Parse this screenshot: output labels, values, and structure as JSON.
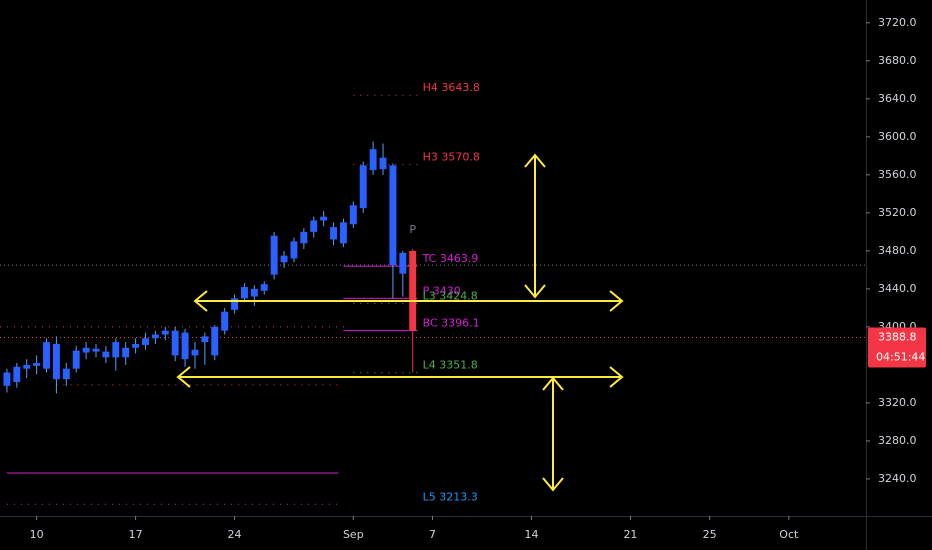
{
  "chart_data": {
    "type": "candlestick",
    "up_color": "#2962ff",
    "down_color": "#2962ff",
    "last_color": "#f23645",
    "wick_color": "#5b9cf6",
    "xlim": [
      -0.7,
      86.8
    ],
    "xticks": [
      {
        "value": 3,
        "label": "10"
      },
      {
        "value": 13,
        "label": "17"
      },
      {
        "value": 23,
        "label": "24"
      },
      {
        "value": 35,
        "label": "Sep"
      },
      {
        "value": 43,
        "label": "7"
      },
      {
        "value": 53,
        "label": "14"
      },
      {
        "value": 63,
        "label": "21"
      },
      {
        "value": 71,
        "label": "25"
      },
      {
        "value": 79,
        "label": "Oct"
      }
    ],
    "ylim": [
      3201,
      3744
    ],
    "yticks": [
      {
        "value": 3240,
        "label": "3240.0"
      },
      {
        "value": 3280,
        "label": "3280.0"
      },
      {
        "value": 3320,
        "label": "3320.0"
      },
      {
        "value": 3400,
        "label": "3400.0"
      },
      {
        "value": 3440,
        "label": "3440.0"
      },
      {
        "value": 3480,
        "label": "3480.0"
      },
      {
        "value": 3520,
        "label": "3520.0"
      },
      {
        "value": 3560,
        "label": "3560.0"
      },
      {
        "value": 3600,
        "label": "3600.0"
      },
      {
        "value": 3640,
        "label": "3640.0"
      },
      {
        "value": 3680,
        "label": "3680.0"
      },
      {
        "value": 3720,
        "label": "3720.0"
      }
    ],
    "candles": {
      "x": [
        0,
        1,
        2,
        3,
        4,
        5,
        6,
        7,
        8,
        9,
        10,
        11,
        12,
        13,
        14,
        15,
        16,
        17,
        18,
        19,
        20,
        21,
        22,
        23,
        24,
        25,
        26,
        27,
        28,
        29,
        30,
        31,
        32,
        33,
        34,
        35,
        36,
        37,
        38,
        39,
        40,
        41
      ],
      "open": [
        3338,
        3342,
        3356,
        3359,
        3356,
        3382,
        3345,
        3356,
        3373,
        3377,
        3374,
        3368,
        3368,
        3378,
        3381,
        3388,
        3392,
        3396,
        3394,
        3370,
        3384,
        3370,
        3396,
        3418,
        3430,
        3432,
        3438,
        3455,
        3468,
        3472,
        3488,
        3500,
        3512,
        3505,
        3488,
        3508,
        3525,
        3565,
        3578,
        3570,
        3456,
        3480
      ],
      "high": [
        3356,
        3362,
        3366,
        3370,
        3388,
        3390,
        3362,
        3380,
        3384,
        3382,
        3380,
        3388,
        3384,
        3388,
        3394,
        3396,
        3400,
        3400,
        3398,
        3384,
        3394,
        3402,
        3420,
        3434,
        3446,
        3444,
        3448,
        3500,
        3480,
        3494,
        3504,
        3516,
        3522,
        3510,
        3514,
        3532,
        3574,
        3595,
        3593,
        3572,
        3480,
        3482
      ],
      "low": [
        3331,
        3336,
        3346,
        3350,
        3352,
        3330,
        3338,
        3352,
        3366,
        3368,
        3362,
        3354,
        3360,
        3372,
        3376,
        3382,
        3386,
        3364,
        3358,
        3356,
        3360,
        3365,
        3392,
        3414,
        3426,
        3422,
        3434,
        3450,
        3462,
        3468,
        3482,
        3494,
        3506,
        3486,
        3484,
        3504,
        3520,
        3560,
        3560,
        3430,
        3432,
        3352
      ],
      "close": [
        3352,
        3358,
        3360,
        3362,
        3384,
        3345,
        3356,
        3375,
        3378,
        3374,
        3368,
        3384,
        3378,
        3382,
        3388,
        3392,
        3396,
        3370,
        3366,
        3376,
        3390,
        3400,
        3416,
        3430,
        3442,
        3440,
        3445,
        3496,
        3475,
        3490,
        3500,
        3512,
        3516,
        3492,
        3510,
        3528,
        3570,
        3587,
        3566,
        3465,
        3478,
        3396
      ]
    },
    "levels": [
      {
        "label": "H4 3643.8",
        "value": 3643.8,
        "from": 35,
        "to": 41,
        "style": "dotted",
        "color": "#f23645"
      },
      {
        "label": "H3 3570.8",
        "value": 3570.8,
        "from": 35,
        "to": 41,
        "style": "dotted",
        "color": "#f23645"
      },
      {
        "label": "TC 3463.9",
        "value": 3463.9,
        "from": 34,
        "to": 41,
        "style": "solid",
        "color": "#d61fd6"
      },
      {
        "label": "P 3430",
        "value": 3430,
        "from": 34,
        "to": 41,
        "style": "solid",
        "color": "#d61fd6"
      },
      {
        "label": "L3 3424.8",
        "value": 3424.8,
        "from": 35,
        "to": 41,
        "style": "dotted",
        "color": "#4caf50"
      },
      {
        "label": "BC 3396.1",
        "value": 3396.1,
        "from": 34,
        "to": 41,
        "style": "solid",
        "color": "#d61fd6"
      },
      {
        "label": "L4 3351.8",
        "value": 3351.8,
        "from": 35,
        "to": 41,
        "style": "dotted",
        "color": "#4caf50"
      },
      {
        "label": "L5 3213.3",
        "value": 3213.3,
        "from": 0,
        "to": 33,
        "style": "dotted",
        "color": "#d61fd6",
        "label_color": "#2196f3"
      },
      {
        "value": 3246.3,
        "from": 0,
        "to": 33,
        "style": "solid",
        "color": "#d61fd6"
      },
      {
        "value": 3400,
        "from": -0.7,
        "to": 34,
        "style": "dotted",
        "color": "#f23645"
      },
      {
        "value": 3339,
        "from": 5,
        "to": 33,
        "style": "dotted",
        "color": "#f23645"
      }
    ],
    "annotation": "P",
    "crosshair_y": 3465,
    "last_price": {
      "value": 3388.8,
      "label": "3388.8"
    },
    "countdown": "04:51:44"
  }
}
